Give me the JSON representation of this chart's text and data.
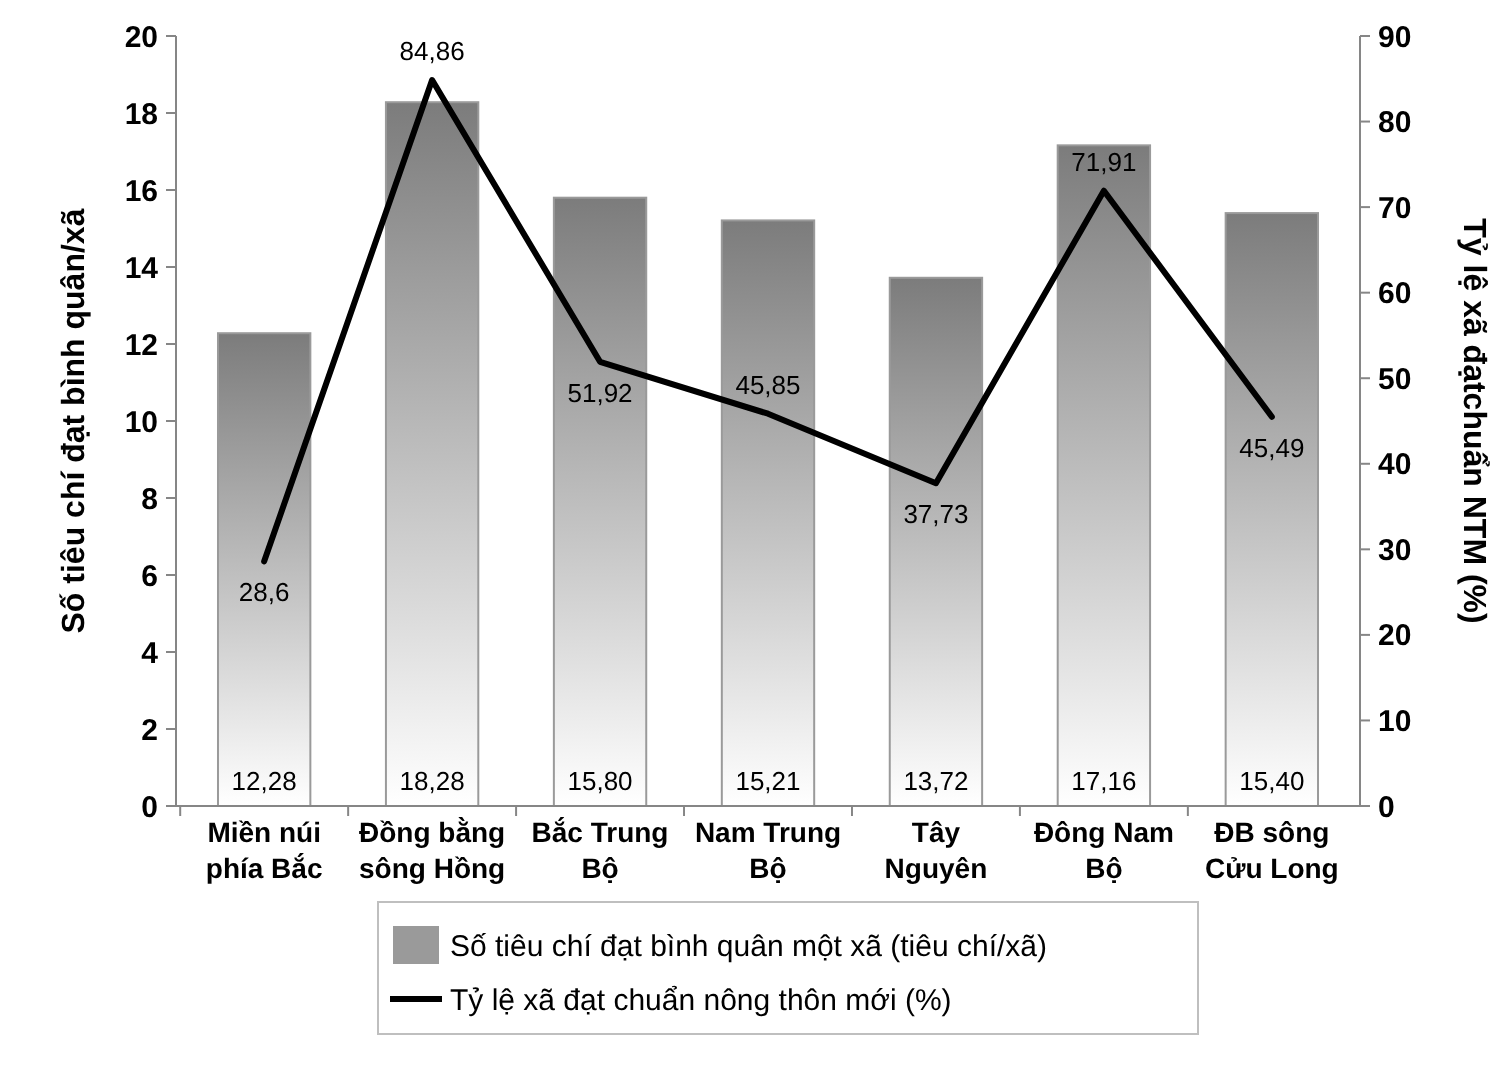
{
  "chart_data": {
    "type": "bar",
    "ylabel": "Số tiêu chí đạt bình quân/xã",
    "y2label": "Tỷ lệ xã đạtchuẩn NTM (%)",
    "categories": [
      "Miền núi phía Bắc",
      "Đồng bằng sông Hồng",
      "Bắc Trung Bộ",
      "Nam Trung Bộ",
      "Tây Nguyên",
      "Đông Nam Bộ",
      "ĐB sông Cửu Long"
    ],
    "series": [
      {
        "name": "Số tiêu chí đạt bình quân một xã (tiêu chí/xã)",
        "color": "#9a9a9a",
        "values": [
          12.28,
          18.28,
          15.8,
          15.21,
          13.72,
          17.16,
          15.4
        ],
        "value_labels": [
          "12,28",
          "18,28",
          "15,80",
          "15,21",
          "13,72",
          "17,16",
          "15,40"
        ]
      },
      {
        "name": "Tỷ lệ xã đạt chuẩn nông thôn mới (%)",
        "type": "line",
        "axis": "y2",
        "color": "#000000",
        "values": [
          28.6,
          84.86,
          51.92,
          45.85,
          37.73,
          71.91,
          45.49
        ],
        "value_labels": [
          "28,6",
          "84,86",
          "51,92",
          "45,85",
          "37,73",
          "71,91",
          "45,49"
        ]
      }
    ],
    "ylim": [
      0,
      20
    ],
    "yticks": [
      0,
      2,
      4,
      6,
      8,
      10,
      12,
      14,
      16,
      18,
      20
    ],
    "y2lim": [
      0,
      90
    ],
    "y2ticks": [
      0,
      10,
      20,
      30,
      40,
      50,
      60,
      70,
      80,
      90
    ],
    "legend": "bottom",
    "marker": "none",
    "line_style": "solid",
    "grid": false
  }
}
